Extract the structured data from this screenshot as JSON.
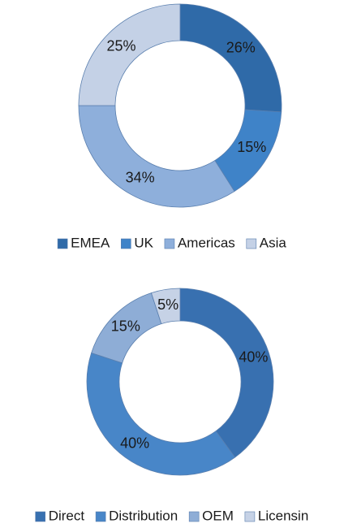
{
  "chart_data": [
    {
      "type": "donut",
      "categories": [
        "EMEA",
        "UK",
        "Americas",
        "Asia"
      ],
      "values": [
        26,
        15,
        34,
        25
      ],
      "value_labels": [
        "26%",
        "15%",
        "34%",
        "25%"
      ],
      "colors": [
        "#2f6aa8",
        "#3f83c8",
        "#8eafdb",
        "#c4d1e6"
      ]
    },
    {
      "type": "donut",
      "categories": [
        "Direct",
        "Distribution",
        "OEM",
        "Licensin"
      ],
      "values": [
        40,
        40,
        15,
        5
      ],
      "value_labels": [
        "40%",
        "40%",
        "15%",
        "5%"
      ],
      "colors": [
        "#3870b0",
        "#4886c8",
        "#8eadd6",
        "#c6d2e6"
      ]
    }
  ]
}
